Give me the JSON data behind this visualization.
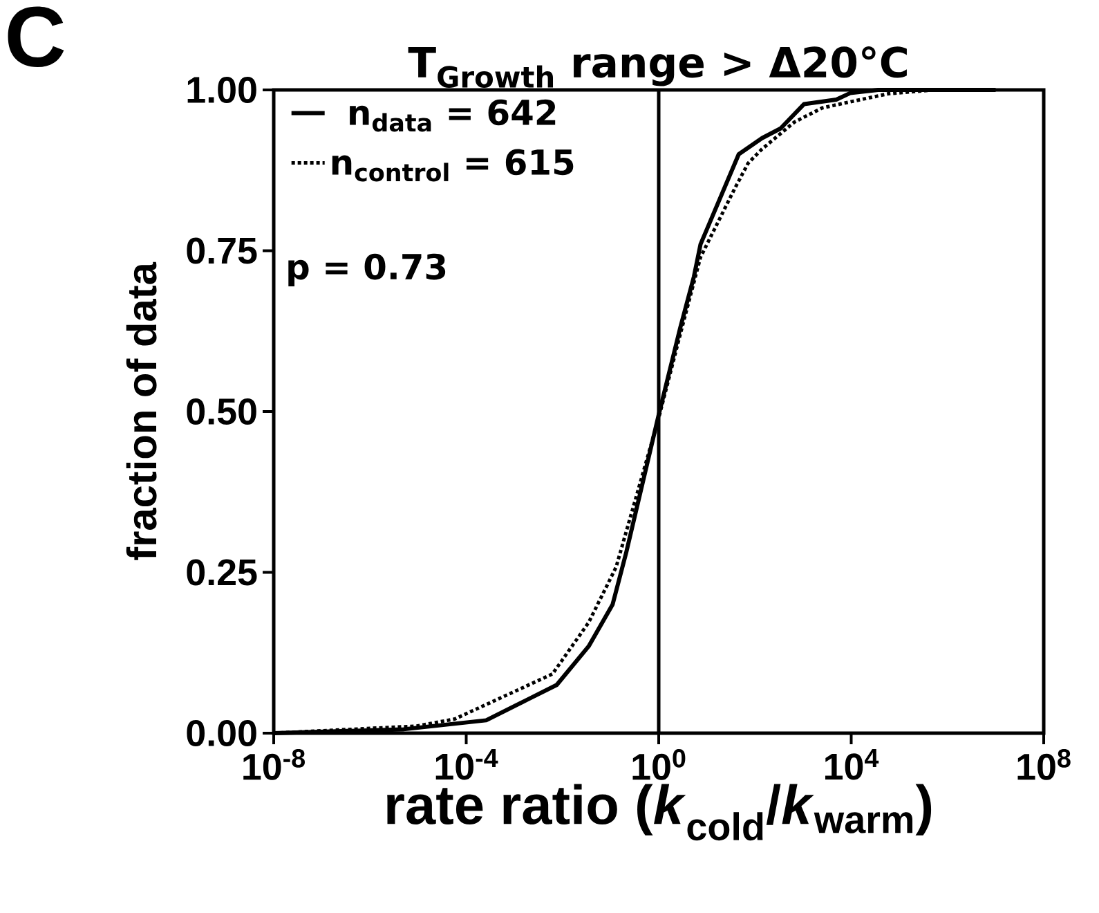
{
  "chart_data": {
    "type": "line",
    "title": "T$_{Growth}$ range > Δ20°C",
    "xlabel": "rate ratio (*k*$_{cold}$/*k*$_{warm}$)",
    "ylabel": "fraction of data",
    "annotations": [
      "C",
      "p = 0.73"
    ],
    "log": "x",
    "xlim": [
      1e-08,
      100000000.0
    ],
    "ylim": [
      0,
      1
    ],
    "xticks": [
      {
        "value": 1e-08,
        "label": "10$^{-8}$"
      },
      {
        "value": 0.0001,
        "label": "10$^{-4}$"
      },
      {
        "value": 1,
        "label": "10$^{0}$"
      },
      {
        "value": 10000.0,
        "label": "10$^{4}$"
      },
      {
        "value": 100000000.0,
        "label": "10$^{8}$"
      }
    ],
    "yticks": [
      {
        "value": 0,
        "label": "0.00"
      },
      {
        "value": 0.25,
        "label": "0.25"
      },
      {
        "value": 0.5,
        "label": "0.50"
      },
      {
        "value": 0.75,
        "label": "0.75"
      },
      {
        "value": 1,
        "label": "1.00"
      }
    ],
    "grid": false,
    "legend": "top left",
    "marker": "none",
    "ref_lines": [
      {
        "axis": "x",
        "value": 1,
        "color": "#000000",
        "line_style": "solid"
      }
    ],
    "series": [
      {
        "name": "n$_{data}$ = 642",
        "color": "#000000",
        "line_style": "solid",
        "x": [
          1e-08,
          5e-06,
          0.00026,
          0.0076,
          0.035,
          0.11,
          0.21,
          1,
          2.8,
          5.4,
          7.4,
          46,
          140,
          340,
          1050,
          4900,
          9500,
          36000,
          10000000.0
        ],
        "values": [
          0,
          0.006,
          0.02,
          0.075,
          0.135,
          0.2,
          0.28,
          0.495,
          0.63,
          0.71,
          0.76,
          0.9,
          0.925,
          0.94,
          0.978,
          0.985,
          0.995,
          1,
          1
        ]
      },
      {
        "name": "n$_{control}$ = 615",
        "color": "#000000",
        "line_style": "dotted",
        "x": [
          1e-08,
          9.3e-06,
          5.8e-05,
          0.0062,
          0.035,
          0.13,
          1,
          2.8,
          7.4,
          37,
          72,
          140,
          660,
          2500,
          12000,
          59000,
          540000,
          10000000.0
        ],
        "values": [
          0,
          0.011,
          0.022,
          0.092,
          0.172,
          0.258,
          0.49,
          0.62,
          0.74,
          0.845,
          0.886,
          0.908,
          0.95,
          0.972,
          0.983,
          0.994,
          1,
          1
        ]
      }
    ]
  }
}
